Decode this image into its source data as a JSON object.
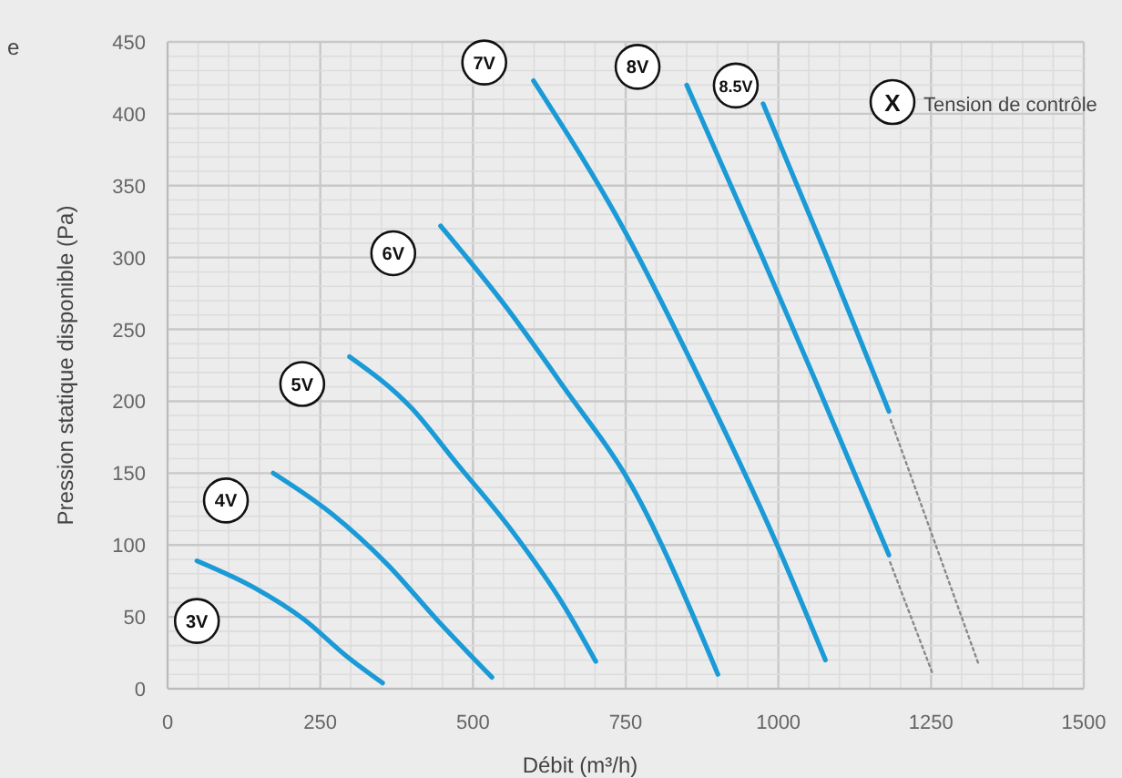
{
  "chart_data": {
    "type": "line",
    "xlabel": "Débit  (m³/h)",
    "ylabel": "Pression statique disponible (Pa)",
    "xlim": [
      0,
      1500
    ],
    "xticks": [
      0,
      250,
      500,
      750,
      1000,
      1250,
      1500
    ],
    "ylim": [
      0,
      450
    ],
    "yticks": [
      0,
      50,
      100,
      150,
      200,
      250,
      300,
      350,
      400,
      450
    ],
    "grid": true,
    "line_style": "solid",
    "marker": "none",
    "annotations": [
      "e",
      "X",
      "Tension de contrôle"
    ],
    "series": [
      {
        "name": "3V",
        "color": "#1a9ad6",
        "x": [
          48,
          143,
          224,
          292,
          352
        ],
        "values": [
          89,
          70,
          48,
          23,
          4
        ]
      },
      {
        "name": "4V",
        "color": "#1a9ad6",
        "x": [
          173,
          268,
          361,
          441,
          531
        ],
        "values": [
          150,
          122,
          86,
          48,
          8
        ]
      },
      {
        "name": "5V",
        "color": "#1a9ad6",
        "x": [
          298,
          400,
          471,
          560,
          650,
          701
        ],
        "values": [
          231,
          195,
          158,
          112,
          57,
          19
        ]
      },
      {
        "name": "6V",
        "color": "#1a9ad6",
        "x": [
          447,
          550,
          650,
          760,
          901
        ],
        "values": [
          322,
          268,
          209,
          141,
          10
        ]
      },
      {
        "name": "7V",
        "color": "#1a9ad6",
        "x": [
          599,
          749,
          859,
          999,
          1077
        ],
        "values": [
          423,
          318,
          226,
          99,
          20
        ]
      },
      {
        "name": "8V",
        "color": "#1a9ad6",
        "x": [
          850,
          972,
          1060,
          1181
        ],
        "values": [
          420,
          302,
          215,
          93
        ]
      },
      {
        "name": "8.5V",
        "color": "#1a9ad6",
        "x": [
          975,
          1077,
          1181
        ],
        "values": [
          407,
          303,
          193
        ]
      },
      {
        "color": "#8a8a8a",
        "line_style": "dotted",
        "x": [
          1183,
          1253
        ],
        "values": [
          88,
          10
        ]
      },
      {
        "color": "#8a8a8a",
        "line_style": "dotted",
        "x": [
          1184,
          1327
        ],
        "values": [
          187,
          18
        ]
      }
    ]
  }
}
